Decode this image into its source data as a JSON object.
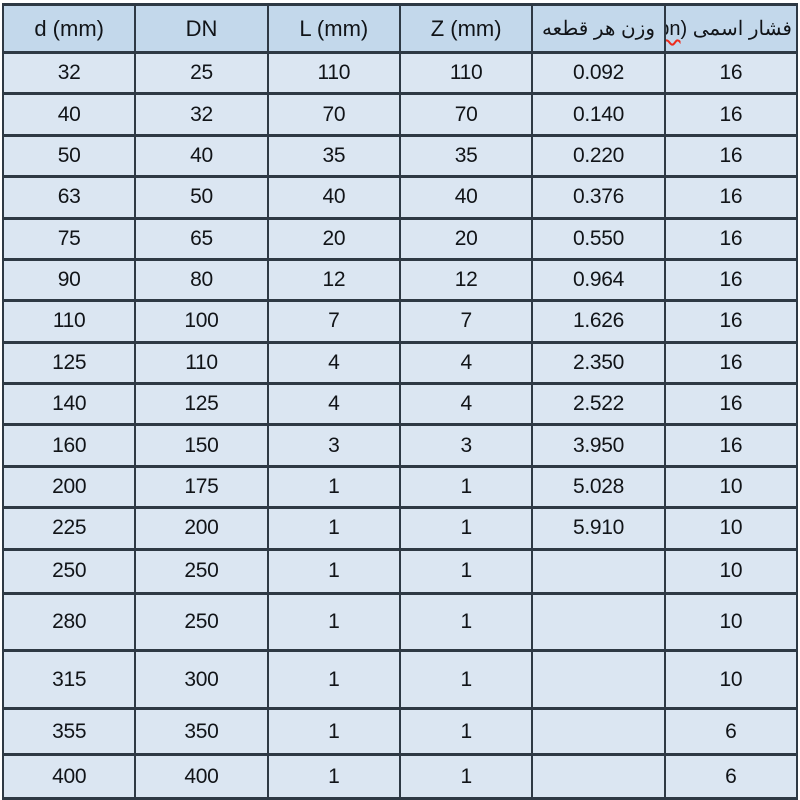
{
  "colors": {
    "header_bg": "#c3d8eb",
    "row_bg": "#dbe6f2",
    "border": "#2e3944",
    "text": "#111418",
    "spellcheck_underline": "#ee2a1b",
    "page_bg": "#ffffff"
  },
  "table": {
    "columns": [
      {
        "label": "d (mm)",
        "rtl": false
      },
      {
        "label": "DN",
        "rtl": false
      },
      {
        "label": "L (mm)",
        "rtl": false
      },
      {
        "label": "Z (mm)",
        "rtl": false
      },
      {
        "label": "وزن هر قطعه",
        "rtl": true
      },
      {
        "label_parts": {
          "prefix": "فشار اسمی (",
          "misspelled": "pn",
          "suffix": ")"
        },
        "rtl": true
      }
    ],
    "rows": [
      [
        "32",
        "25",
        "110",
        "110",
        "0.092",
        "16"
      ],
      [
        "40",
        "32",
        "70",
        "70",
        "0.140",
        "16"
      ],
      [
        "50",
        "40",
        "35",
        "35",
        "0.220",
        "16"
      ],
      [
        "63",
        "50",
        "40",
        "40",
        "0.376",
        "16"
      ],
      [
        "75",
        "65",
        "20",
        "20",
        "0.550",
        "16"
      ],
      [
        "90",
        "80",
        "12",
        "12",
        "0.964",
        "16"
      ],
      [
        "110",
        "100",
        "7",
        "7",
        "1.626",
        "16"
      ],
      [
        "125",
        "110",
        "4",
        "4",
        "2.350",
        "16"
      ],
      [
        "140",
        "125",
        "4",
        "4",
        "2.522",
        "16"
      ],
      [
        "160",
        "150",
        "3",
        "3",
        "3.950",
        "16"
      ],
      [
        "200",
        "175",
        "1",
        "1",
        "5.028",
        "10"
      ],
      [
        "225",
        "200",
        "1",
        "1",
        "5.910",
        "10"
      ],
      [
        "250",
        "250",
        "1",
        "1",
        "",
        "10"
      ],
      [
        "280",
        "250",
        "1",
        "1",
        "",
        "10"
      ],
      [
        "315",
        "300",
        "1",
        "1",
        "",
        "10"
      ],
      [
        "355",
        "350",
        "1",
        "1",
        "",
        "6"
      ],
      [
        "400",
        "400",
        "1",
        "1",
        "",
        "6"
      ]
    ]
  }
}
